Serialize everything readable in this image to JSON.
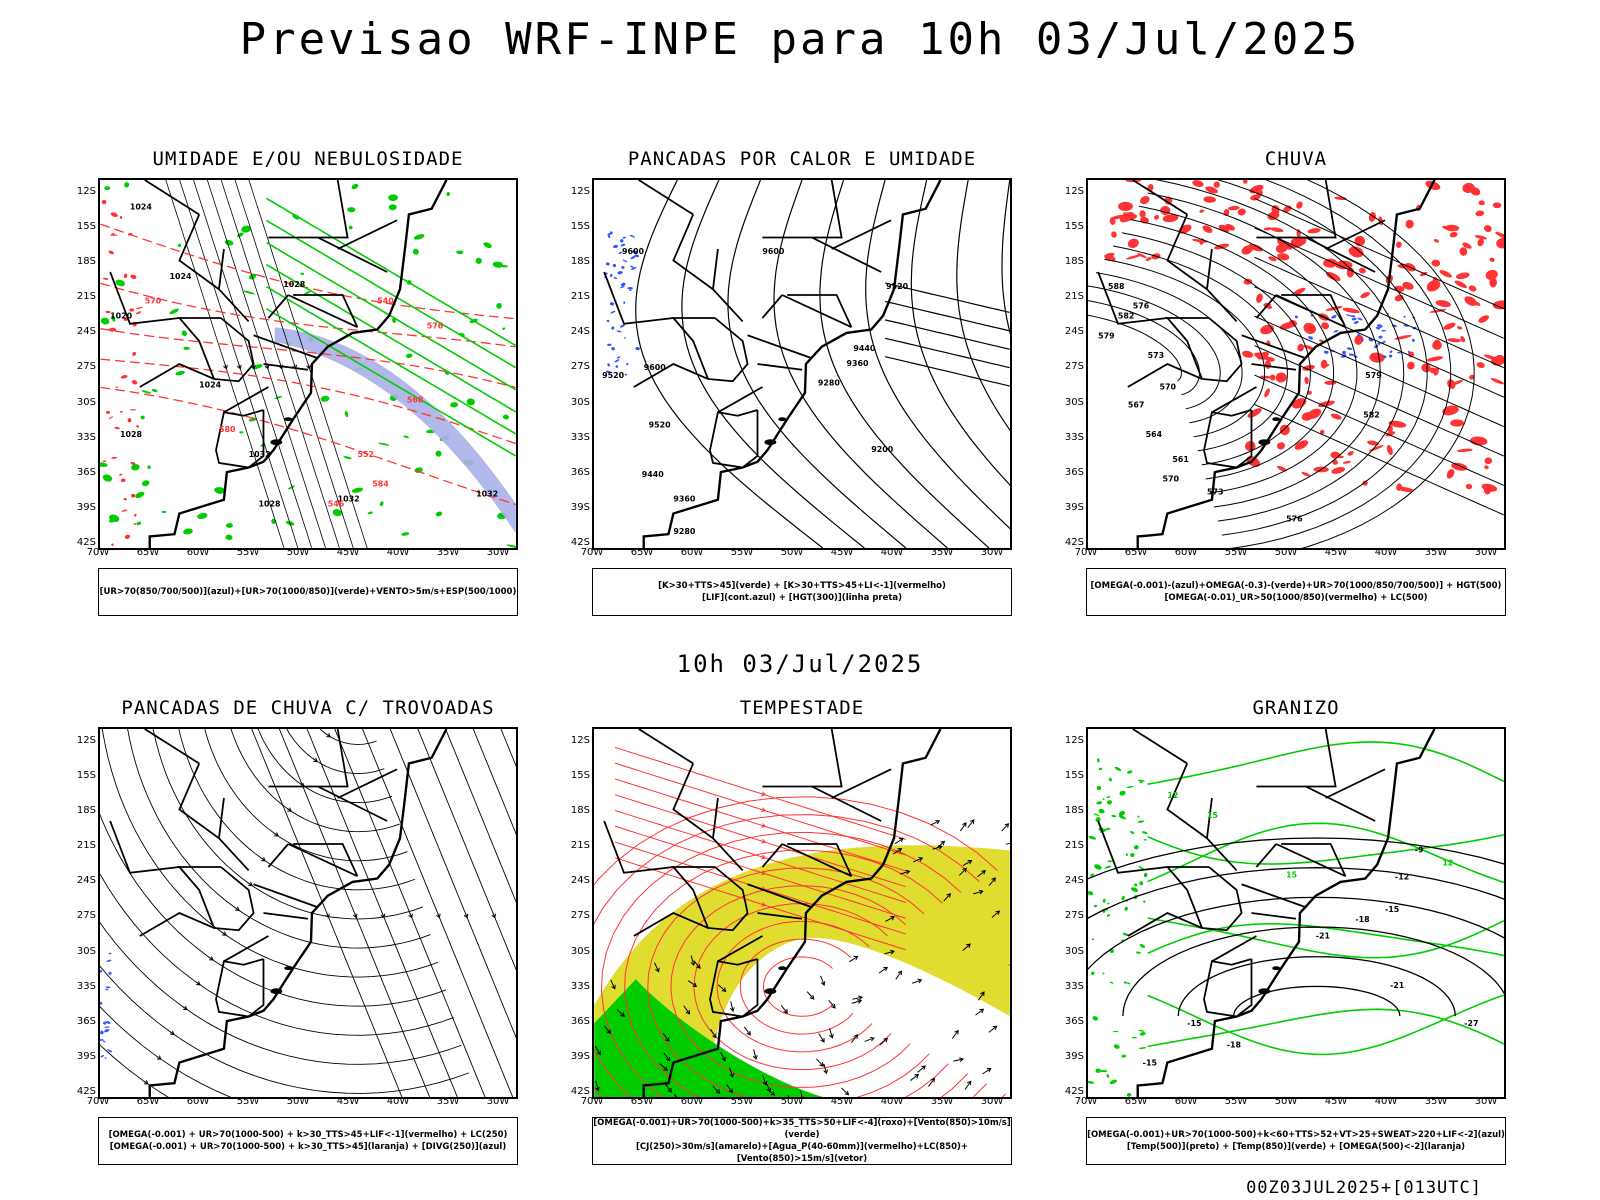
{
  "title": "Previsao WRF-INPE  para 10h 03/Jul/2025",
  "mid_time": "10h 03/Jul/2025",
  "footer": "00Z03JUL2025+[013UTC]",
  "axes": {
    "lat_ticks": [
      "12S",
      "15S",
      "18S",
      "21S",
      "24S",
      "27S",
      "30S",
      "33S",
      "36S",
      "39S",
      "42S"
    ],
    "lon_ticks": [
      "70W",
      "65W",
      "60W",
      "55W",
      "50W",
      "45W",
      "40W",
      "35W",
      "30W"
    ]
  },
  "colors": {
    "green": "#00cc00",
    "red": "#ff3333",
    "blue": "#3355ff",
    "yellow": "#e0dc30",
    "lavender": "#aab0e8",
    "black": "#000000"
  },
  "panels": [
    {
      "id": "umidade",
      "title": "UMIDADE E/OU NEBULOSIDADE",
      "legend": [
        "[UR>70(850/700/500)](azul)+[UR>70(1000/850)](verde)+VENTO>5m/s+ESP(500/1000)"
      ],
      "contour_labels": [
        "1024",
        "1024",
        "1020",
        "1024",
        "1028",
        "1028",
        "1032",
        "1032",
        "1032",
        "1028",
        "584",
        "576",
        "568",
        "552",
        "546",
        "540",
        "580",
        "570"
      ]
    },
    {
      "id": "pancadas-calor",
      "title": "PANCADAS POR CALOR E UMIDADE",
      "legend": [
        "[K>30+TTS>45](verde) + [K>30+TTS>45+LI<-1](vermelho)",
        "[LIF](cont.azul) + [HGT(300)](linha preta)"
      ],
      "contour_labels": [
        "9600",
        "9600",
        "9520",
        "9600",
        "9520",
        "9440",
        "9360",
        "9280",
        "9440",
        "9360",
        "9280",
        "9200",
        "9520"
      ]
    },
    {
      "id": "chuva",
      "title": "CHUVA",
      "legend": [
        "[OMEGA(-0.001)-(azul)+OMEGA(-0.3)-(verde)+UR>70(1000/850/700/500)] + HGT(500)",
        "[OMEGA(-0.01)_UR>50(1000/850)(vermelho) + LC(500)"
      ],
      "contour_labels": [
        "588",
        "582",
        "579",
        "576",
        "573",
        "570",
        "567",
        "564",
        "561",
        "570",
        "573",
        "576",
        "579",
        "582"
      ]
    },
    {
      "id": "trovoadas",
      "title": "PANCADAS DE CHUVA C/ TROVOADAS",
      "legend": [
        "[OMEGA(-0.001) + UR>70(1000-500) + k>30_TTS>45+LIF<-1](vermelho) + LC(250)",
        "[OMEGA(-0.001) + UR>70(1000-500) + k>30_TTS>45](laranja) + [DIVG(250)](azul)"
      ],
      "contour_labels": []
    },
    {
      "id": "tempestade",
      "title": "TEMPESTADE",
      "legend": [
        "[OMEGA(-0.001)+UR>70(1000-500)+k>35_TTS>50+LIF<-4](roxo)+[Vento(850)>10m/s](verde)",
        "[CJ(250)>30m/s](amarelo)+[Agua_P(40-60mm)](vermelho)+LC(850)+[Vento(850)>15m/s](vetor)"
      ],
      "contour_labels": []
    },
    {
      "id": "granizo",
      "title": "GRANIZO",
      "legend": [
        "[OMEGA(-0.001)+UR>70(1000-500)+k<60+TTS>52+VT>25+SWEAT>220+LIF<-2](azul)",
        "[Temp(500)](preto) + [Temp(850)](verde) + [OMEGA(500)<-2](laranja)"
      ],
      "contour_labels": [
        "-9",
        "-12",
        "-15",
        "-18",
        "-21",
        "-21",
        "-27",
        "-15",
        "-18",
        "-15",
        "12",
        "12",
        "15",
        "15"
      ]
    }
  ]
}
